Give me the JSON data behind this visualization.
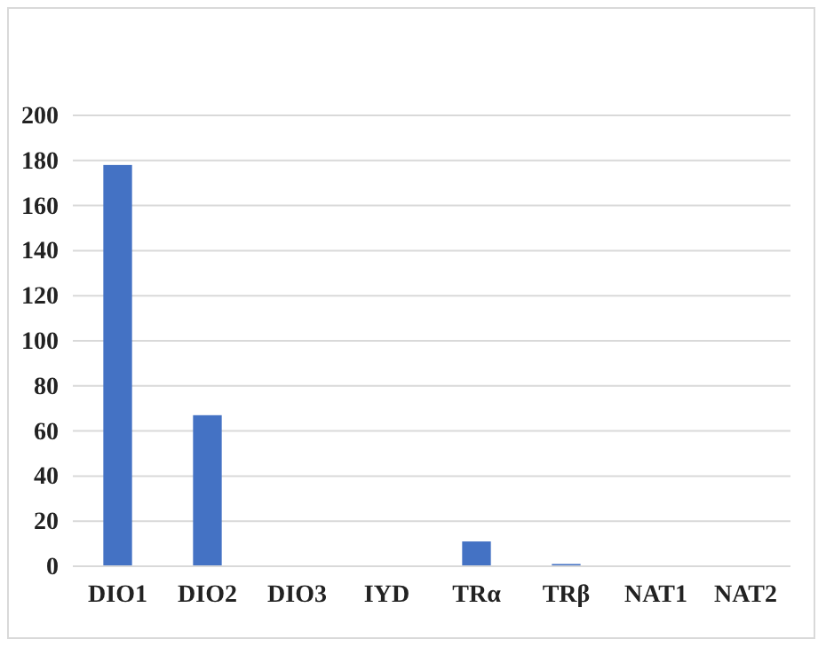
{
  "chart_data": {
    "type": "bar",
    "categories": [
      "DIO1",
      "DIO2",
      "DIO3",
      "IYD",
      "TRα",
      "TRβ",
      "NAT1",
      "NAT2"
    ],
    "values": [
      178,
      67,
      0,
      0,
      11,
      1,
      0,
      0
    ],
    "color": "#4472c4",
    "ylim": [
      0,
      200
    ],
    "yticks": [
      0,
      20,
      40,
      60,
      80,
      100,
      120,
      140,
      160,
      180,
      200
    ],
    "grid": "y"
  }
}
